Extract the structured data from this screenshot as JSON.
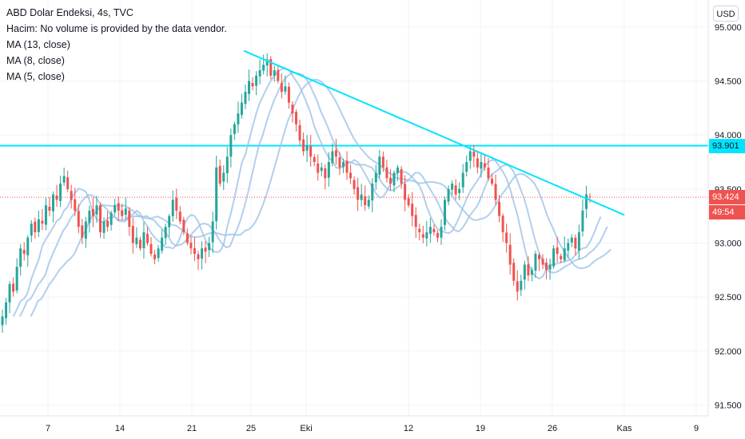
{
  "legend": {
    "title": "ABD Dolar Endeksi, 4s, TVC",
    "volume_note": "Hacim: No volume is provided by the data vendor.",
    "ma1": "MA (13, close)",
    "ma2": "MA (8, close)",
    "ma3": "MA (5, close)"
  },
  "currency_button": "USD",
  "price_tags": {
    "resistance": "93.901",
    "last_price": "93.424",
    "countdown": "49:54"
  },
  "colors": {
    "up": "#26a69a",
    "down": "#ef5350",
    "trendline": "#00e5ff",
    "ma": "#9fc3e7",
    "grid": "#f0f3fa",
    "last_price": "#ef5350",
    "resistance": "#00e5ff"
  },
  "chart_data": {
    "type": "candlestick",
    "title": "ABD Dolar Endeksi, 4s, TVC",
    "y_axis": {
      "ticks": [
        "95.000",
        "94.500",
        "94.000",
        "93.500",
        "93.000",
        "92.500",
        "92.000",
        "91.500"
      ],
      "range": [
        91.4,
        95.25
      ]
    },
    "x_axis": {
      "ticks": [
        "7",
        "14",
        "21",
        "25",
        "Eki",
        "12",
        "19",
        "26",
        "Kas",
        "9"
      ]
    },
    "horizontal_line": 93.901,
    "trendline": {
      "from": [
        "25",
        94.78
      ],
      "to": [
        "29",
        93.26
      ]
    },
    "last_price": 93.424,
    "closes": [
      92.32,
      92.45,
      92.62,
      92.55,
      92.78,
      92.95,
      92.9,
      93.05,
      93.18,
      93.1,
      93.22,
      93.18,
      93.35,
      93.3,
      93.45,
      93.4,
      93.55,
      93.62,
      93.5,
      93.4,
      93.3,
      93.15,
      93.05,
      93.2,
      93.3,
      93.25,
      93.35,
      93.1,
      93.2,
      93.15,
      93.28,
      93.35,
      93.3,
      93.25,
      93.32,
      93.15,
      93.0,
      93.05,
      92.95,
      93.1,
      93.0,
      92.9,
      92.85,
      92.95,
      93.05,
      93.15,
      93.25,
      93.4,
      93.3,
      93.2,
      93.1,
      93.0,
      92.95,
      92.9,
      92.85,
      92.95,
      92.92,
      93.0,
      93.2,
      93.7,
      93.55,
      93.65,
      93.8,
      94.0,
      94.1,
      94.2,
      94.3,
      94.4,
      94.5,
      94.45,
      94.55,
      94.6,
      94.65,
      94.7,
      94.55,
      94.6,
      94.5,
      94.4,
      94.45,
      94.3,
      94.2,
      94.1,
      93.95,
      93.85,
      93.9,
      93.8,
      93.75,
      93.65,
      93.7,
      93.6,
      93.75,
      93.85,
      93.8,
      93.7,
      93.75,
      93.65,
      93.6,
      93.5,
      93.4,
      93.45,
      93.35,
      93.4,
      93.55,
      93.65,
      93.8,
      93.7,
      93.6,
      93.55,
      93.65,
      93.7,
      93.55,
      93.4,
      93.35,
      93.25,
      93.15,
      93.1,
      93.05,
      93.1,
      93.15,
      93.1,
      93.05,
      93.15,
      93.4,
      93.5,
      93.55,
      93.45,
      93.5,
      93.65,
      93.75,
      93.85,
      93.8,
      93.7,
      93.75,
      93.7,
      93.6,
      93.55,
      93.4,
      93.25,
      93.1,
      93.0,
      92.8,
      92.65,
      92.55,
      92.65,
      92.8,
      92.7,
      92.75,
      92.9,
      92.85,
      92.8,
      92.75,
      92.8,
      92.95,
      92.9,
      92.85,
      92.95,
      93.0,
      93.05,
      92.95,
      93.1,
      93.3,
      93.45,
      93.424
    ]
  }
}
